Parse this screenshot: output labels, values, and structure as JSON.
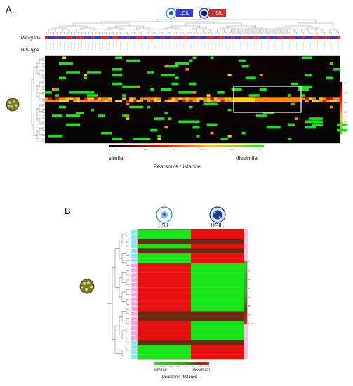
{
  "panel_a": {
    "letter": "A",
    "legend_lsil": "LSIL",
    "legend_hsil": "HSIL",
    "pap_grade_label": "Pap grade",
    "hpv_type_label": "HPV type",
    "colorbar_ticks": [
      "0",
      "0.4",
      "0.8",
      "1.2",
      "1.6",
      "2"
    ],
    "similar_label": "similar",
    "dissimilar_label": "dissimilar",
    "distance_label": "Pearson's distance",
    "side_ticks": [
      "0",
      "0.4",
      "0.8",
      "1.2",
      "1.6",
      "2"
    ]
  },
  "panel_b": {
    "letter": "B",
    "col_lsil": "LSIL",
    "col_hsil": "HSIL",
    "side_ticks": [
      "0",
      "0.1",
      "0.2",
      "0.3",
      "0.4",
      "0.5",
      "0.6",
      "0.707"
    ],
    "bottom_ticks": [
      "0",
      "0.1",
      "0.2",
      "0.3",
      "0.4",
      "0.5",
      "0.6",
      "0.707"
    ],
    "similar_label": "similar",
    "dissimilar_label": "dissimilar",
    "distance_label": "Pearson's distance",
    "row_patterns": [
      "G",
      "G",
      "B",
      "G",
      "B",
      "G",
      "G",
      "R",
      "R",
      "R",
      "R",
      "R",
      "R",
      "R",
      "R",
      "R",
      "R",
      "B",
      "B",
      "R",
      "R",
      "R",
      "R",
      "B",
      "G",
      "G",
      "G"
    ]
  },
  "colors": {
    "green": "#19e619",
    "red": "#e81010",
    "dark_brown": "#6b2a12",
    "black": "#050505",
    "orange": "#ff8a14",
    "yellow": "#ffd21a",
    "lsil_blue": "#2e3bd8",
    "hsil_red": "#e32222",
    "pink_side": "#f7a8db",
    "cyan_side": "#8ee8f3"
  }
}
